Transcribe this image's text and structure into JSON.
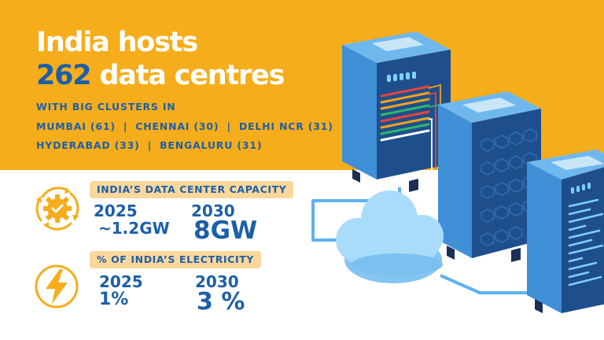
{
  "headline": {
    "line1": "India hosts",
    "count": "262",
    "line2_rest": " data centres"
  },
  "clusters": {
    "intro": "WITH BIG CLUSTERS IN",
    "row1": [
      "MUMBAI (61)",
      "CHENNAI (30)",
      "DELHI NCR (31)"
    ],
    "row2": [
      "HYDERABAD (33)",
      "BENGALURU (31)"
    ],
    "separator": "|"
  },
  "capacity": {
    "label": "INDIA’S DATA CENTER CAPACITY",
    "year_a": "2025",
    "value_a": "~1.2GW",
    "year_b": "2030",
    "value_b": "8GW"
  },
  "electricity": {
    "label": "% OF INDIA’S ELECTRICITY",
    "year_a": "2025",
    "value_a": "1%",
    "year_b": "2030",
    "value_b": "3 %"
  },
  "icons": {
    "capacity": "gear-check-icon",
    "electricity": "lightning-bolt-icon"
  },
  "colors": {
    "banner": "#f5ad1b",
    "brand_blue": "#1d5fa8",
    "pill": "#fbd79b",
    "icon_orange": "#f5ad1b",
    "server_front": "#1e4f8c",
    "server_side": "#3f8fd6",
    "server_top": "#6fb8ee",
    "cloud": "#a9dcfb",
    "cable": "#5fb2ec"
  }
}
